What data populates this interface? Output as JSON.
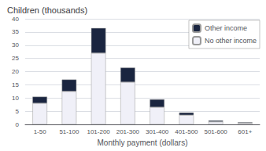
{
  "chart_data": {
    "type": "bar",
    "title": "Children (thousands)",
    "xlabel": "Monthly payment (dollars)",
    "categories": [
      "1-50",
      "51-100",
      "101-200",
      "201-300",
      "301-400",
      "401-500",
      "501-600",
      "601+"
    ],
    "series": [
      {
        "name": "No other income",
        "color": "#f0f0f8",
        "values": [
          8,
          12.5,
          27,
          16,
          6.5,
          3.5,
          1.0,
          0.5
        ]
      },
      {
        "name": "Other income",
        "color": "#1a2540",
        "values": [
          2.5,
          4.5,
          9.5,
          5.5,
          3.0,
          1.0,
          0.5,
          0.3
        ]
      }
    ],
    "stacked": true,
    "ylim": [
      0,
      40
    ],
    "yticks": [
      0,
      5,
      10,
      15,
      20,
      25,
      30,
      35,
      40
    ],
    "grid": true,
    "legend": "upper right"
  }
}
